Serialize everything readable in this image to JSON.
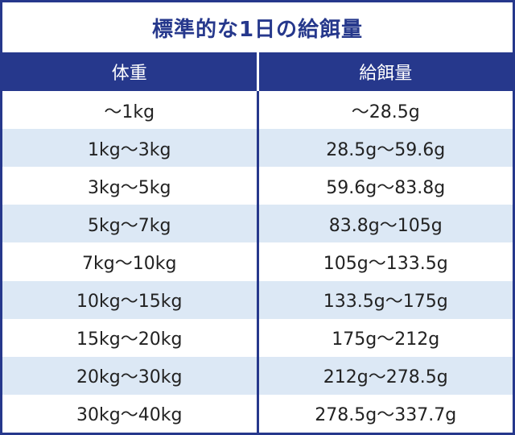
{
  "header": {
    "title": "標準的な1日の給餌量"
  },
  "table": {
    "columns": [
      "体重",
      "給餌量"
    ],
    "rows": [
      [
        "～1kg",
        "～28.5g"
      ],
      [
        "1kg～3kg",
        "28.5g～59.6g"
      ],
      [
        "3kg～5kg",
        "59.6g～83.8g"
      ],
      [
        "5kg～7kg",
        "83.8g～105g"
      ],
      [
        "7kg～10kg",
        "105g～133.5g"
      ],
      [
        "10kg～15kg",
        "133.5g～175g"
      ],
      [
        "15kg～20kg",
        "175g～212g"
      ],
      [
        "20kg～30kg",
        "212g～278.5g"
      ],
      [
        "30kg～40kg",
        "278.5g～337.7g"
      ]
    ]
  }
}
